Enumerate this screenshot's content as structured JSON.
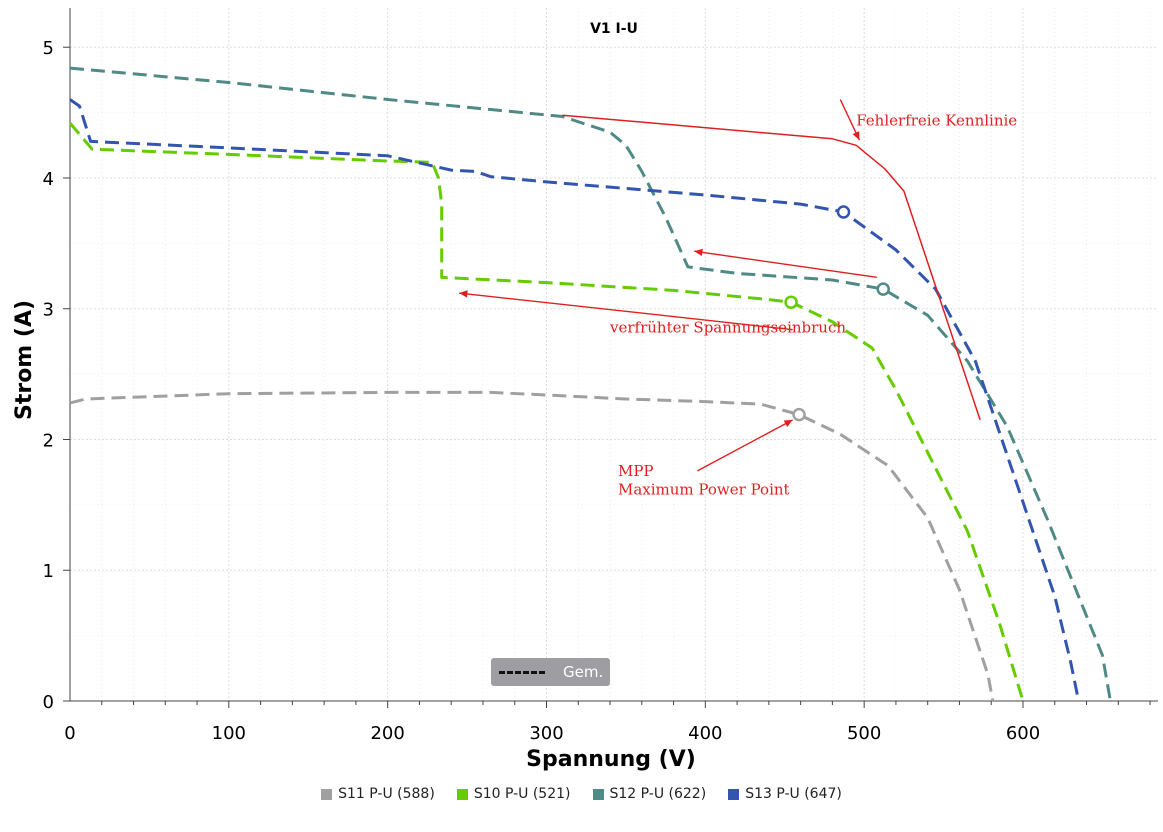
{
  "chart_data": {
    "type": "line",
    "title": "V1 I-U",
    "xlabel": "Spannung (V)",
    "ylabel": "Strom (A)",
    "xlim": [
      0,
      685
    ],
    "ylim": [
      0,
      5.3
    ],
    "xticks": [
      0,
      100,
      200,
      300,
      400,
      500,
      600
    ],
    "yticks": [
      0,
      1,
      2,
      3,
      4,
      5
    ],
    "grid": true,
    "series": [
      {
        "name": "S11 P-U (588)",
        "color": "#a0a0a0",
        "style": "dashed",
        "points": [
          [
            0,
            2.28
          ],
          [
            10,
            2.31
          ],
          [
            100,
            2.35
          ],
          [
            200,
            2.36
          ],
          [
            265,
            2.36
          ],
          [
            300,
            2.34
          ],
          [
            350,
            2.31
          ],
          [
            400,
            2.29
          ],
          [
            435,
            2.27
          ],
          [
            459,
            2.19
          ],
          [
            485,
            2.04
          ],
          [
            515,
            1.8
          ],
          [
            540,
            1.4
          ],
          [
            560,
            0.85
          ],
          [
            578,
            0.2
          ],
          [
            581,
            0
          ]
        ],
        "mpp": [
          459,
          2.19
        ]
      },
      {
        "name": "S10 P-U (521)",
        "color": "#66cc00",
        "style": "dashed",
        "points": [
          [
            0,
            4.42
          ],
          [
            14,
            4.22
          ],
          [
            100,
            4.18
          ],
          [
            200,
            4.13
          ],
          [
            228,
            4.12
          ],
          [
            232,
            4.0
          ],
          [
            234,
            3.8
          ],
          [
            234,
            3.24
          ],
          [
            300,
            3.2
          ],
          [
            380,
            3.14
          ],
          [
            440,
            3.07
          ],
          [
            454,
            3.05
          ],
          [
            480,
            2.9
          ],
          [
            505,
            2.7
          ],
          [
            520,
            2.38
          ],
          [
            540,
            1.9
          ],
          [
            565,
            1.3
          ],
          [
            585,
            0.6
          ],
          [
            600,
            0
          ]
        ],
        "mpp": [
          454,
          3.05
        ]
      },
      {
        "name": "S12 P-U (622)",
        "color": "#4f8a87",
        "style": "dashed",
        "points": [
          [
            0,
            4.84
          ],
          [
            100,
            4.73
          ],
          [
            200,
            4.6
          ],
          [
            310,
            4.47
          ],
          [
            340,
            4.35
          ],
          [
            350,
            4.25
          ],
          [
            360,
            4.05
          ],
          [
            375,
            3.7
          ],
          [
            389,
            3.32
          ],
          [
            420,
            3.27
          ],
          [
            480,
            3.22
          ],
          [
            512,
            3.15
          ],
          [
            540,
            2.95
          ],
          [
            565,
            2.6
          ],
          [
            590,
            2.1
          ],
          [
            615,
            1.4
          ],
          [
            635,
            0.8
          ],
          [
            650,
            0.35
          ],
          [
            655,
            0
          ]
        ],
        "mpp": [
          512,
          3.15
        ]
      },
      {
        "name": "S13 P-U (647)",
        "color": "#3355b0",
        "style": "dashed",
        "points": [
          [
            0,
            4.6
          ],
          [
            6,
            4.55
          ],
          [
            13,
            4.28
          ],
          [
            100,
            4.23
          ],
          [
            200,
            4.17
          ],
          [
            240,
            4.06
          ],
          [
            255,
            4.05
          ],
          [
            265,
            4.01
          ],
          [
            300,
            3.97
          ],
          [
            400,
            3.87
          ],
          [
            460,
            3.8
          ],
          [
            487,
            3.74
          ],
          [
            520,
            3.45
          ],
          [
            545,
            3.15
          ],
          [
            570,
            2.6
          ],
          [
            595,
            1.7
          ],
          [
            620,
            0.8
          ],
          [
            630,
            0.3
          ],
          [
            635,
            0
          ]
        ],
        "mpp": [
          487,
          3.74
        ]
      },
      {
        "name": "",
        "color": "#e02020",
        "style": "solid",
        "points": [
          [
            310,
            4.48
          ],
          [
            480,
            4.3
          ],
          [
            495,
            4.25
          ],
          [
            513,
            4.07
          ],
          [
            525,
            3.9
          ],
          [
            573,
            2.15
          ]
        ]
      }
    ],
    "annotations": [
      {
        "text": "Fehlerfreie Kennlinie",
        "xy": [
          495,
          4.4
        ],
        "color": "#e02020"
      },
      {
        "text": "verfrühter Spannungseinbruch",
        "xy": [
          340,
          2.82
        ],
        "color": "#e02020"
      },
      {
        "text": "MPP",
        "xy": [
          345,
          1.72
        ],
        "color": "#e02020"
      },
      {
        "text": "Maximum Power Point",
        "xy": [
          345,
          1.58
        ],
        "color": "#e02020"
      }
    ],
    "arrows": [
      {
        "from": [
          485,
          4.6
        ],
        "to": [
          497,
          4.29
        ]
      },
      {
        "from": [
          508,
          3.24
        ],
        "to": [
          393,
          3.44
        ]
      },
      {
        "from": [
          455,
          2.84
        ],
        "to": [
          245,
          3.12
        ]
      },
      {
        "from": [
          395,
          1.76
        ],
        "to": [
          455,
          2.15
        ]
      }
    ],
    "legend_position": "bottom",
    "inline_legend": {
      "label": "Gem."
    }
  }
}
